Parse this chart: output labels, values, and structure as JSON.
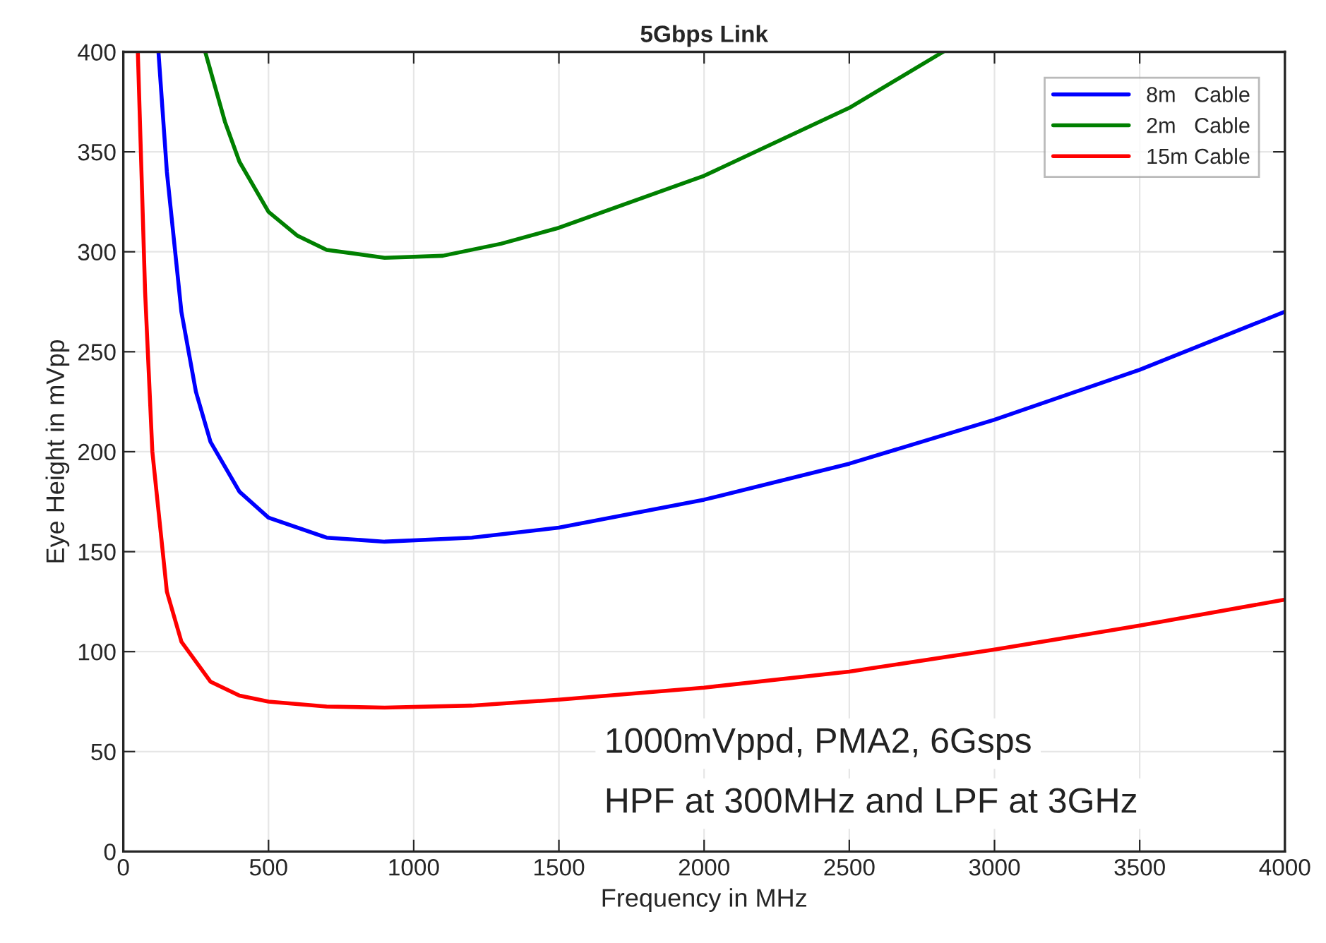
{
  "chart_data": {
    "type": "line",
    "title": "5Gbps Link",
    "xlabel": "Frequency in MHz",
    "ylabel": "Eye Height in mVpp",
    "xlim": [
      0,
      4000
    ],
    "ylim": [
      0,
      400
    ],
    "xticks": [
      0,
      500,
      1000,
      1500,
      2000,
      2500,
      3000,
      3500,
      4000
    ],
    "yticks": [
      0,
      50,
      100,
      150,
      200,
      250,
      300,
      350,
      400
    ],
    "grid": true,
    "legend": "top right",
    "line_style": "solid",
    "marker": "none",
    "annotations": [
      "1000mVppd, PMA2, 6Gsps",
      "HPF at 300MHz and LPF at 3GHz"
    ],
    "series": [
      {
        "name": "8m   Cable",
        "color": "#0000ff",
        "x": [
          121,
          150,
          200,
          250,
          300,
          400,
          500,
          700,
          900,
          1200,
          1500,
          2000,
          2500,
          3000,
          3500,
          4000
        ],
        "values": [
          400,
          340,
          270,
          230,
          205,
          180,
          167,
          157,
          155,
          157,
          162,
          176,
          194,
          216,
          241,
          270
        ]
      },
      {
        "name": "2m   Cable",
        "color": "#008000",
        "x": [
          282,
          350,
          400,
          500,
          600,
          700,
          900,
          1100,
          1300,
          1500,
          2000,
          2500,
          2823
        ],
        "values": [
          400,
          365,
          345,
          320,
          308,
          301,
          297,
          298,
          304,
          312,
          338,
          372,
          400
        ]
      },
      {
        "name": "15m Cable",
        "color": "#ff0000",
        "x": [
          50,
          75,
          100,
          150,
          200,
          300,
          400,
          500,
          700,
          900,
          1200,
          1500,
          2000,
          2500,
          3000,
          3500,
          4000
        ],
        "values": [
          400,
          280,
          200,
          130,
          105,
          85,
          78,
          75,
          72.5,
          72,
          73,
          76,
          82,
          90,
          101,
          113,
          126
        ]
      }
    ]
  }
}
